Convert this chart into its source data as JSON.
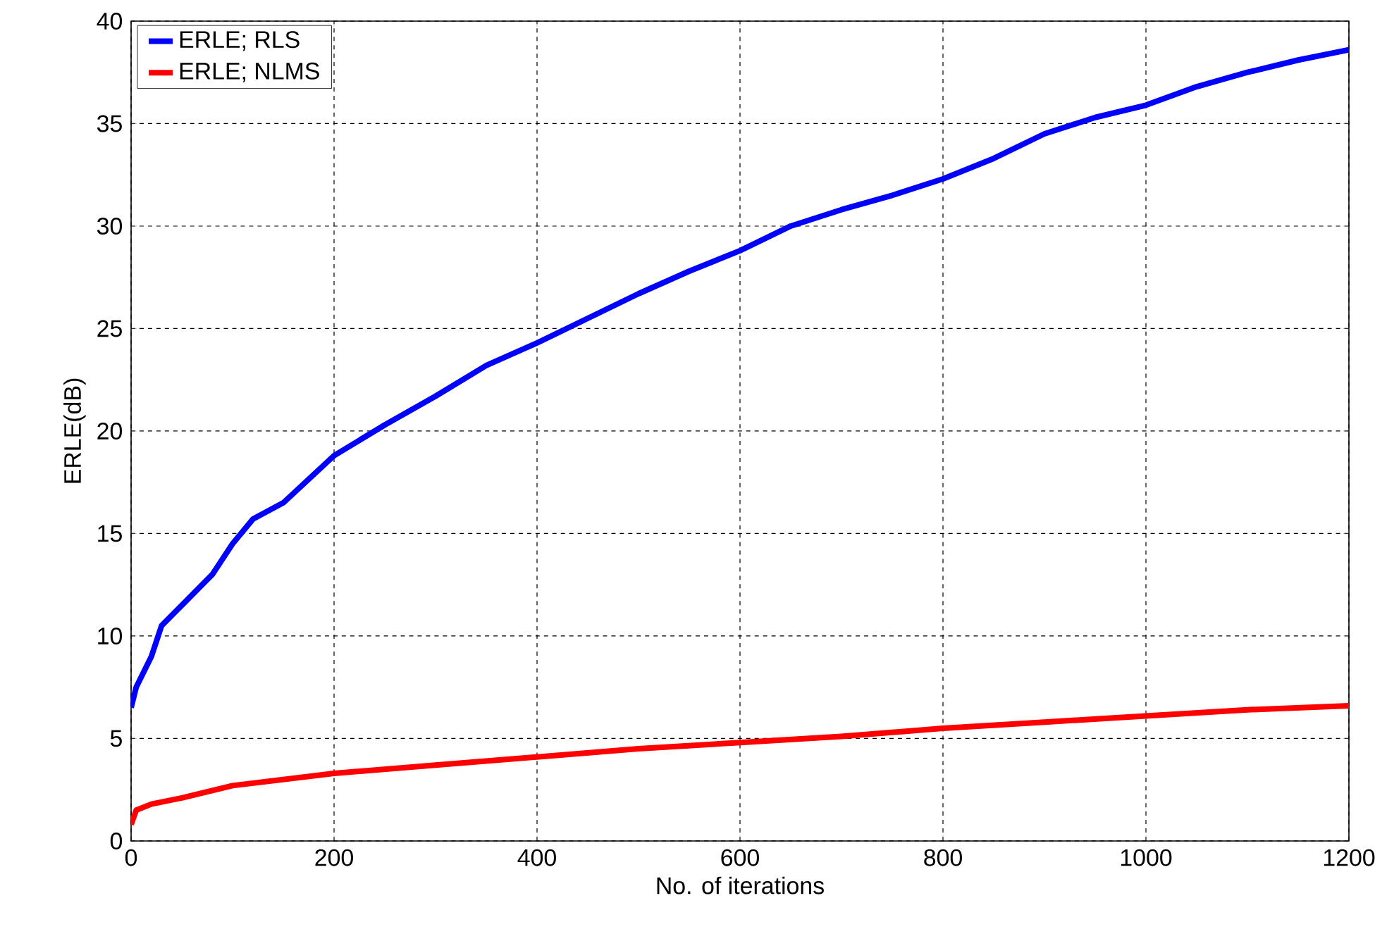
{
  "chart_data": {
    "type": "line",
    "xlabel": "No. of iterations",
    "ylabel": "ERLE(dB)",
    "xlim": [
      0,
      1200
    ],
    "ylim": [
      0,
      40
    ],
    "xticks": [
      0,
      200,
      400,
      600,
      800,
      1000,
      1200
    ],
    "yticks": [
      0,
      5,
      10,
      15,
      20,
      25,
      30,
      35,
      40
    ],
    "grid": true,
    "legend": "top left",
    "line_style": "solid",
    "marker": "none",
    "series": [
      {
        "name": "ERLE; RLS",
        "color": "#0000ff",
        "x": [
          0,
          5,
          20,
          30,
          50,
          80,
          100,
          120,
          150,
          200,
          250,
          300,
          350,
          400,
          450,
          500,
          550,
          600,
          650,
          700,
          750,
          800,
          850,
          900,
          950,
          1000,
          1050,
          1100,
          1150,
          1200
        ],
        "values": [
          6.5,
          7.5,
          9,
          10.5,
          11.5,
          13,
          14.5,
          15.7,
          16.5,
          18.8,
          20.3,
          21.7,
          23.2,
          24.3,
          25.5,
          26.7,
          27.8,
          28.8,
          30,
          30.8,
          31.5,
          32.3,
          33.3,
          34.5,
          35.3,
          35.9,
          36.8,
          37.5,
          38.1,
          38.6
        ]
      },
      {
        "name": "ERLE; NLMS",
        "color": "#ff0000",
        "x": [
          0,
          5,
          20,
          50,
          100,
          150,
          200,
          300,
          400,
          500,
          600,
          700,
          800,
          900,
          1000,
          1100,
          1200
        ],
        "values": [
          0.8,
          1.5,
          1.8,
          2.1,
          2.7,
          3.0,
          3.3,
          3.7,
          4.1,
          4.5,
          4.8,
          5.1,
          5.5,
          5.8,
          6.1,
          6.4,
          6.6
        ]
      }
    ]
  }
}
